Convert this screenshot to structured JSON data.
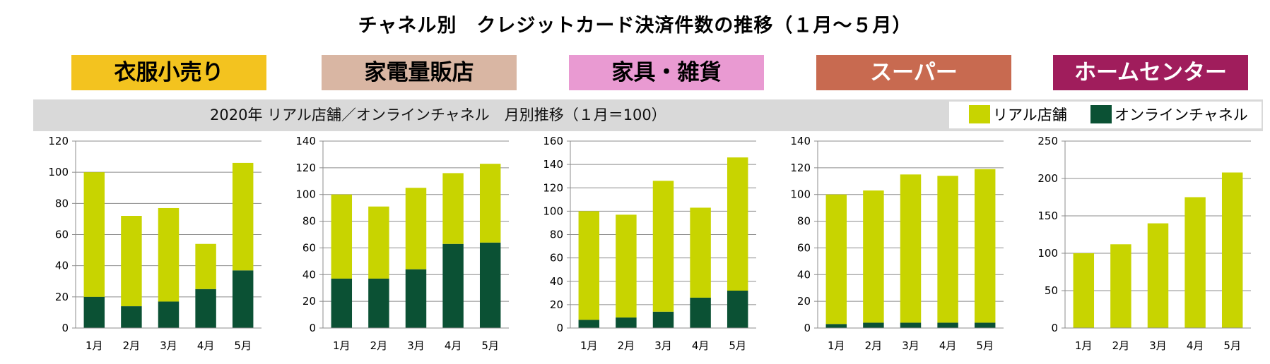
{
  "title": "チャネル別　クレジットカード決済件数の推移（１月～５月）",
  "tags": [
    {
      "label": "衣服小売り",
      "bg": "#f3c31f",
      "fg": "#000000"
    },
    {
      "label": "家電量販店",
      "bg": "#d9b6a3",
      "fg": "#000000"
    },
    {
      "label": "家具・雑貨",
      "bg": "#e99ad2",
      "fg": "#000000"
    },
    {
      "label": "スーパー",
      "bg": "#c86a50",
      "fg": "#ffffff"
    },
    {
      "label": "ホームセンター",
      "bg": "#a01d5c",
      "fg": "#ffffff"
    }
  ],
  "band_title": "2020年 リアル店舗／オンラインチャネル　月別推移（１月＝100）",
  "legend": {
    "real": {
      "label": "リアル店舗",
      "color": "#c8d400"
    },
    "online": {
      "label": "オンラインチャネル",
      "color": "#0b5134"
    }
  },
  "chart_data": [
    {
      "type": "bar",
      "stacked": true,
      "categories": [
        "1月",
        "2月",
        "3月",
        "4月",
        "5月"
      ],
      "ylim": [
        0,
        120
      ],
      "yticks": [
        0,
        20,
        40,
        60,
        80,
        100,
        120
      ],
      "series": [
        {
          "name": "オンラインチャネル",
          "values": [
            20,
            14,
            17,
            25,
            37
          ]
        },
        {
          "name": "リアル店舗",
          "values": [
            80,
            58,
            60,
            29,
            69
          ]
        }
      ]
    },
    {
      "type": "bar",
      "stacked": true,
      "categories": [
        "1月",
        "2月",
        "3月",
        "4月",
        "5月"
      ],
      "ylim": [
        0,
        140
      ],
      "yticks": [
        0,
        20,
        40,
        60,
        80,
        100,
        120,
        140
      ],
      "series": [
        {
          "name": "オンラインチャネル",
          "values": [
            37,
            37,
            44,
            63,
            64
          ]
        },
        {
          "name": "リアル店舗",
          "values": [
            63,
            54,
            61,
            53,
            59
          ]
        }
      ]
    },
    {
      "type": "bar",
      "stacked": true,
      "categories": [
        "1月",
        "2月",
        "3月",
        "4月",
        "5月"
      ],
      "ylim": [
        0,
        160
      ],
      "yticks": [
        0,
        20,
        40,
        60,
        80,
        100,
        120,
        140,
        160
      ],
      "series": [
        {
          "name": "オンラインチャネル",
          "values": [
            7,
            9,
            14,
            26,
            32
          ]
        },
        {
          "name": "リアル店舗",
          "values": [
            93,
            88,
            112,
            77,
            114
          ]
        }
      ]
    },
    {
      "type": "bar",
      "stacked": true,
      "categories": [
        "1月",
        "2月",
        "3月",
        "4月",
        "5月"
      ],
      "ylim": [
        0,
        140
      ],
      "yticks": [
        0,
        20,
        40,
        60,
        80,
        100,
        120,
        140
      ],
      "series": [
        {
          "name": "オンラインチャネル",
          "values": [
            3,
            4,
            4,
            4,
            4
          ]
        },
        {
          "name": "リアル店舗",
          "values": [
            97,
            99,
            111,
            110,
            115
          ]
        }
      ]
    },
    {
      "type": "bar",
      "stacked": true,
      "categories": [
        "1月",
        "2月",
        "3月",
        "4月",
        "5月"
      ],
      "ylim": [
        0,
        250
      ],
      "yticks": [
        0,
        50,
        100,
        150,
        200,
        250
      ],
      "series": [
        {
          "name": "オンラインチャネル",
          "values": [
            0,
            0,
            0,
            0,
            0
          ]
        },
        {
          "name": "リアル店舗",
          "values": [
            100,
            112,
            140,
            175,
            208
          ]
        }
      ]
    }
  ]
}
